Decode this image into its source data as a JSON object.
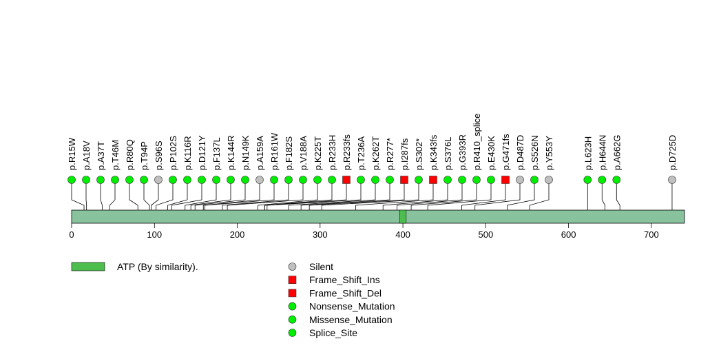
{
  "chart_data": {
    "type": "lollipop",
    "title": "",
    "xlabel": "",
    "ylabel": "",
    "protein_length": 740,
    "xlim": [
      0,
      740
    ],
    "ticks": [
      0,
      100,
      200,
      300,
      400,
      500,
      600,
      700
    ],
    "domains": [
      {
        "name": "ATP (By similarity).",
        "start": 396,
        "end": 404
      }
    ],
    "mutations": [
      {
        "label": "p.R15W",
        "pos": 15,
        "type": "Missense_Mutation"
      },
      {
        "label": "p.A18V",
        "pos": 18,
        "type": "Missense_Mutation"
      },
      {
        "label": "p.A37T",
        "pos": 37,
        "type": "Missense_Mutation"
      },
      {
        "label": "p.T46M",
        "pos": 46,
        "type": "Missense_Mutation"
      },
      {
        "label": "p.R80Q",
        "pos": 80,
        "type": "Missense_Mutation"
      },
      {
        "label": "p.T94P",
        "pos": 94,
        "type": "Missense_Mutation"
      },
      {
        "label": "p.S96S",
        "pos": 96,
        "type": "Silent"
      },
      {
        "label": "p.P102S",
        "pos": 102,
        "type": "Missense_Mutation"
      },
      {
        "label": "p.K116R",
        "pos": 116,
        "type": "Missense_Mutation"
      },
      {
        "label": "p.D121Y",
        "pos": 121,
        "type": "Missense_Mutation"
      },
      {
        "label": "p.F137L",
        "pos": 137,
        "type": "Missense_Mutation"
      },
      {
        "label": "p.K144R",
        "pos": 144,
        "type": "Missense_Mutation"
      },
      {
        "label": "p.N149K",
        "pos": 149,
        "type": "Missense_Mutation"
      },
      {
        "label": "p.A159A",
        "pos": 159,
        "type": "Silent"
      },
      {
        "label": "p.R161W",
        "pos": 161,
        "type": "Missense_Mutation"
      },
      {
        "label": "p.F182S",
        "pos": 182,
        "type": "Missense_Mutation"
      },
      {
        "label": "p.V188A",
        "pos": 188,
        "type": "Missense_Mutation"
      },
      {
        "label": "p.K225T",
        "pos": 225,
        "type": "Missense_Mutation"
      },
      {
        "label": "p.R233H",
        "pos": 233,
        "type": "Missense_Mutation"
      },
      {
        "label": "p.R233fs",
        "pos": 233,
        "type": "Frame_Shift_Del"
      },
      {
        "label": "p.T236A",
        "pos": 236,
        "type": "Missense_Mutation"
      },
      {
        "label": "p.K262T",
        "pos": 262,
        "type": "Missense_Mutation"
      },
      {
        "label": "p.R277*",
        "pos": 277,
        "type": "Nonsense_Mutation"
      },
      {
        "label": "p.I287fs",
        "pos": 287,
        "type": "Frame_Shift_Del"
      },
      {
        "label": "p.S302*",
        "pos": 302,
        "type": "Nonsense_Mutation"
      },
      {
        "label": "p.K343fs",
        "pos": 343,
        "type": "Frame_Shift_Del"
      },
      {
        "label": "p.S376L",
        "pos": 376,
        "type": "Missense_Mutation"
      },
      {
        "label": "p.G393R",
        "pos": 393,
        "type": "Missense_Mutation"
      },
      {
        "label": "p.R410_splice",
        "pos": 410,
        "type": "Splice_Site"
      },
      {
        "label": "p.E430K",
        "pos": 430,
        "type": "Missense_Mutation"
      },
      {
        "label": "p.G471fs",
        "pos": 471,
        "type": "Frame_Shift_Del"
      },
      {
        "label": "p.D487D",
        "pos": 487,
        "type": "Silent"
      },
      {
        "label": "p.S526N",
        "pos": 526,
        "type": "Missense_Mutation"
      },
      {
        "label": "p.Y553Y",
        "pos": 553,
        "type": "Silent"
      },
      {
        "label": "p.L623H",
        "pos": 623,
        "type": "Missense_Mutation"
      },
      {
        "label": "p.H644N",
        "pos": 644,
        "type": "Missense_Mutation"
      },
      {
        "label": "p.A662G",
        "pos": 662,
        "type": "Missense_Mutation"
      },
      {
        "label": "p.D725D",
        "pos": 725,
        "type": "Silent"
      }
    ],
    "legend": [
      {
        "label": "Silent",
        "shape": "circle",
        "color": "#c0c0c0"
      },
      {
        "label": "Frame_Shift_Ins",
        "shape": "square",
        "color": "#ff0000"
      },
      {
        "label": "Frame_Shift_Del",
        "shape": "square",
        "color": "#ff0000"
      },
      {
        "label": "Nonsense_Mutation",
        "shape": "circle",
        "color": "#00ee00"
      },
      {
        "label": "Missense_Mutation",
        "shape": "circle",
        "color": "#00ee00"
      },
      {
        "label": "Splice_Site",
        "shape": "circle",
        "color": "#00ee00"
      }
    ],
    "colors": {
      "protein_bar": "#88c39e",
      "domain": "#4dbd4d",
      "silent": "#c0c0c0",
      "frameshift": "#ff0000",
      "missense": "#00ee00"
    }
  }
}
